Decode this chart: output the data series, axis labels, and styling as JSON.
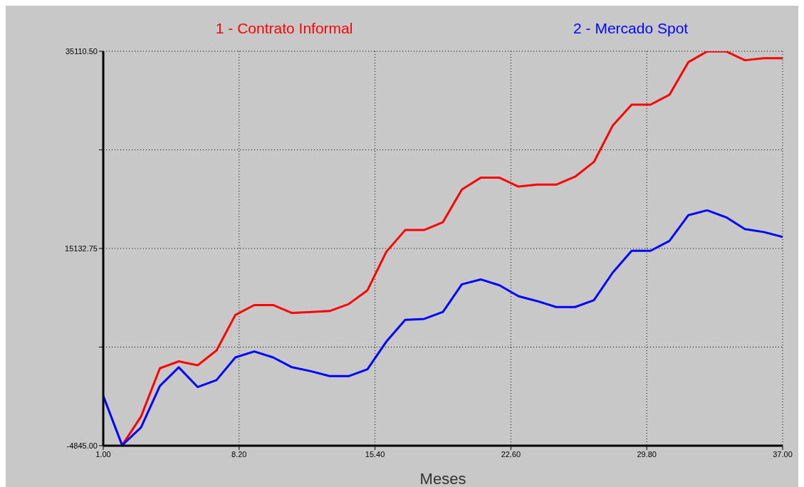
{
  "chart_data": {
    "type": "line",
    "xlabel": "Meses",
    "x": [
      1,
      2,
      3,
      4,
      5,
      6,
      7,
      8,
      9,
      10,
      11,
      12,
      13,
      14,
      15,
      16,
      17,
      18,
      19,
      20,
      21,
      22,
      23,
      24,
      25,
      26,
      27,
      28,
      29,
      30,
      31,
      32,
      33,
      34,
      35,
      36,
      37
    ],
    "series": [
      {
        "name": "1 - Contrato Informal",
        "color": "#ff0000",
        "values": [
          null,
          -4800,
          -1900,
          3000,
          3700,
          3300,
          4800,
          8400,
          9400,
          9400,
          8600,
          8700,
          8800,
          9500,
          10900,
          14800,
          17000,
          17000,
          17800,
          21100,
          22300,
          22300,
          21400,
          21600,
          21600,
          22400,
          23900,
          27600,
          29700,
          29700,
          30700,
          34000,
          35100,
          35100,
          34200,
          34400,
          34400
        ]
      },
      {
        "name": "2 - Mercado Spot",
        "color": "#0000ff",
        "values": [
          200,
          -4800,
          -3000,
          1200,
          3100,
          1100,
          1800,
          4100,
          4700,
          4100,
          3100,
          2700,
          2200,
          2200,
          2900,
          5700,
          7900,
          8000,
          8700,
          11500,
          12000,
          11400,
          10300,
          9800,
          9200,
          9200,
          9900,
          12700,
          14900,
          14900,
          15900,
          18500,
          19000,
          18300,
          17100,
          16800,
          16300
        ]
      }
    ],
    "xlim": [
      1,
      37
    ],
    "xticks": [
      {
        "value": 1,
        "label": "1.00"
      },
      {
        "value": 8.2,
        "label": "8.20"
      },
      {
        "value": 15.4,
        "label": "15.40"
      },
      {
        "value": 22.6,
        "label": "22.60"
      },
      {
        "value": 29.8,
        "label": "29.80"
      },
      {
        "value": 37,
        "label": "37.00"
      }
    ],
    "ylim": [
      -4845,
      35110.5
    ],
    "yticks": [
      {
        "value": -4845,
        "label": "-4845.00"
      },
      {
        "value": 5143.875,
        "label": null
      },
      {
        "value": 15132.75,
        "label": "15132.75"
      },
      {
        "value": 25121.625,
        "label": null
      },
      {
        "value": 35110.5,
        "label": "35110.50"
      }
    ],
    "grid": true,
    "legend": "top",
    "marker": "none",
    "line_style": "solid"
  }
}
